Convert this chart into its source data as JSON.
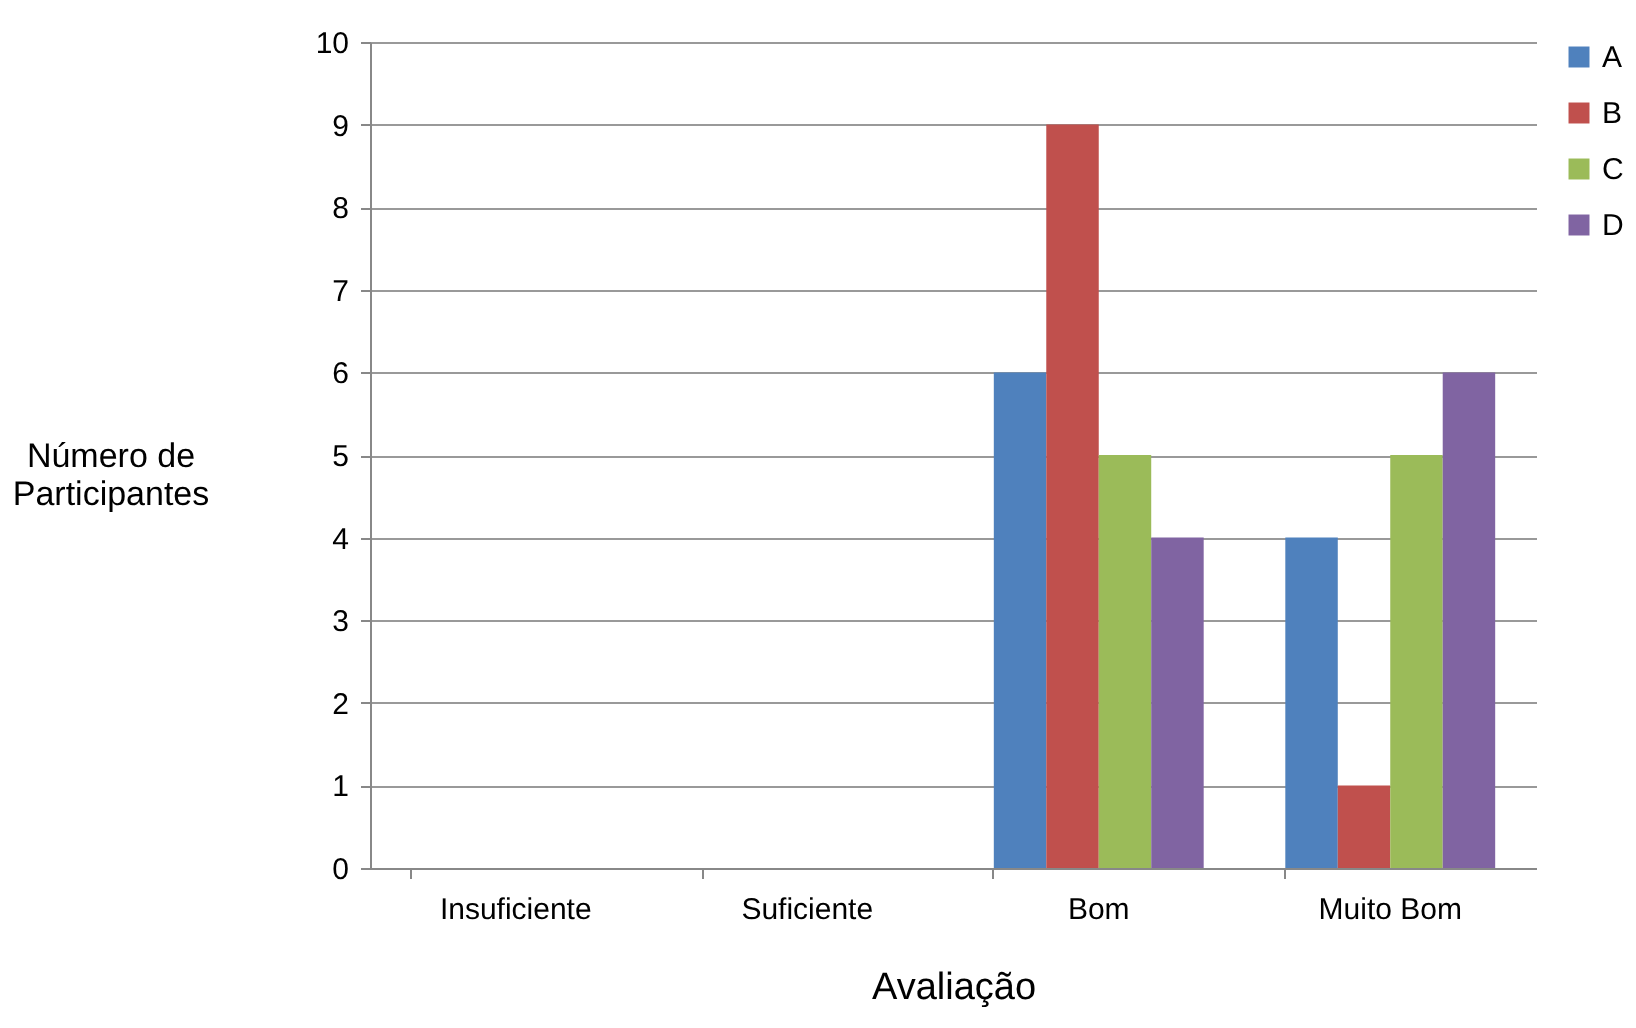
{
  "chart_data": {
    "type": "bar",
    "xlabel": "Avaliação",
    "ylabel": "Número de Participantes",
    "categories": [
      "Insuficiente",
      "Suficiente",
      "Bom",
      "Muito Bom"
    ],
    "series": [
      {
        "name": "A",
        "color": "#4f81bd",
        "values": [
          0,
          0,
          6,
          4
        ]
      },
      {
        "name": "B",
        "color": "#c0504d",
        "values": [
          0,
          0,
          9,
          1
        ]
      },
      {
        "name": "C",
        "color": "#9bbb59",
        "values": [
          0,
          0,
          5,
          5
        ]
      },
      {
        "name": "D",
        "color": "#8064a2",
        "values": [
          0,
          0,
          4,
          6
        ]
      }
    ],
    "ylim": [
      0,
      10
    ],
    "yticks": [
      0,
      1,
      2,
      3,
      4,
      5,
      6,
      7,
      8,
      9,
      10
    ],
    "grid": "y",
    "legend": "right"
  }
}
